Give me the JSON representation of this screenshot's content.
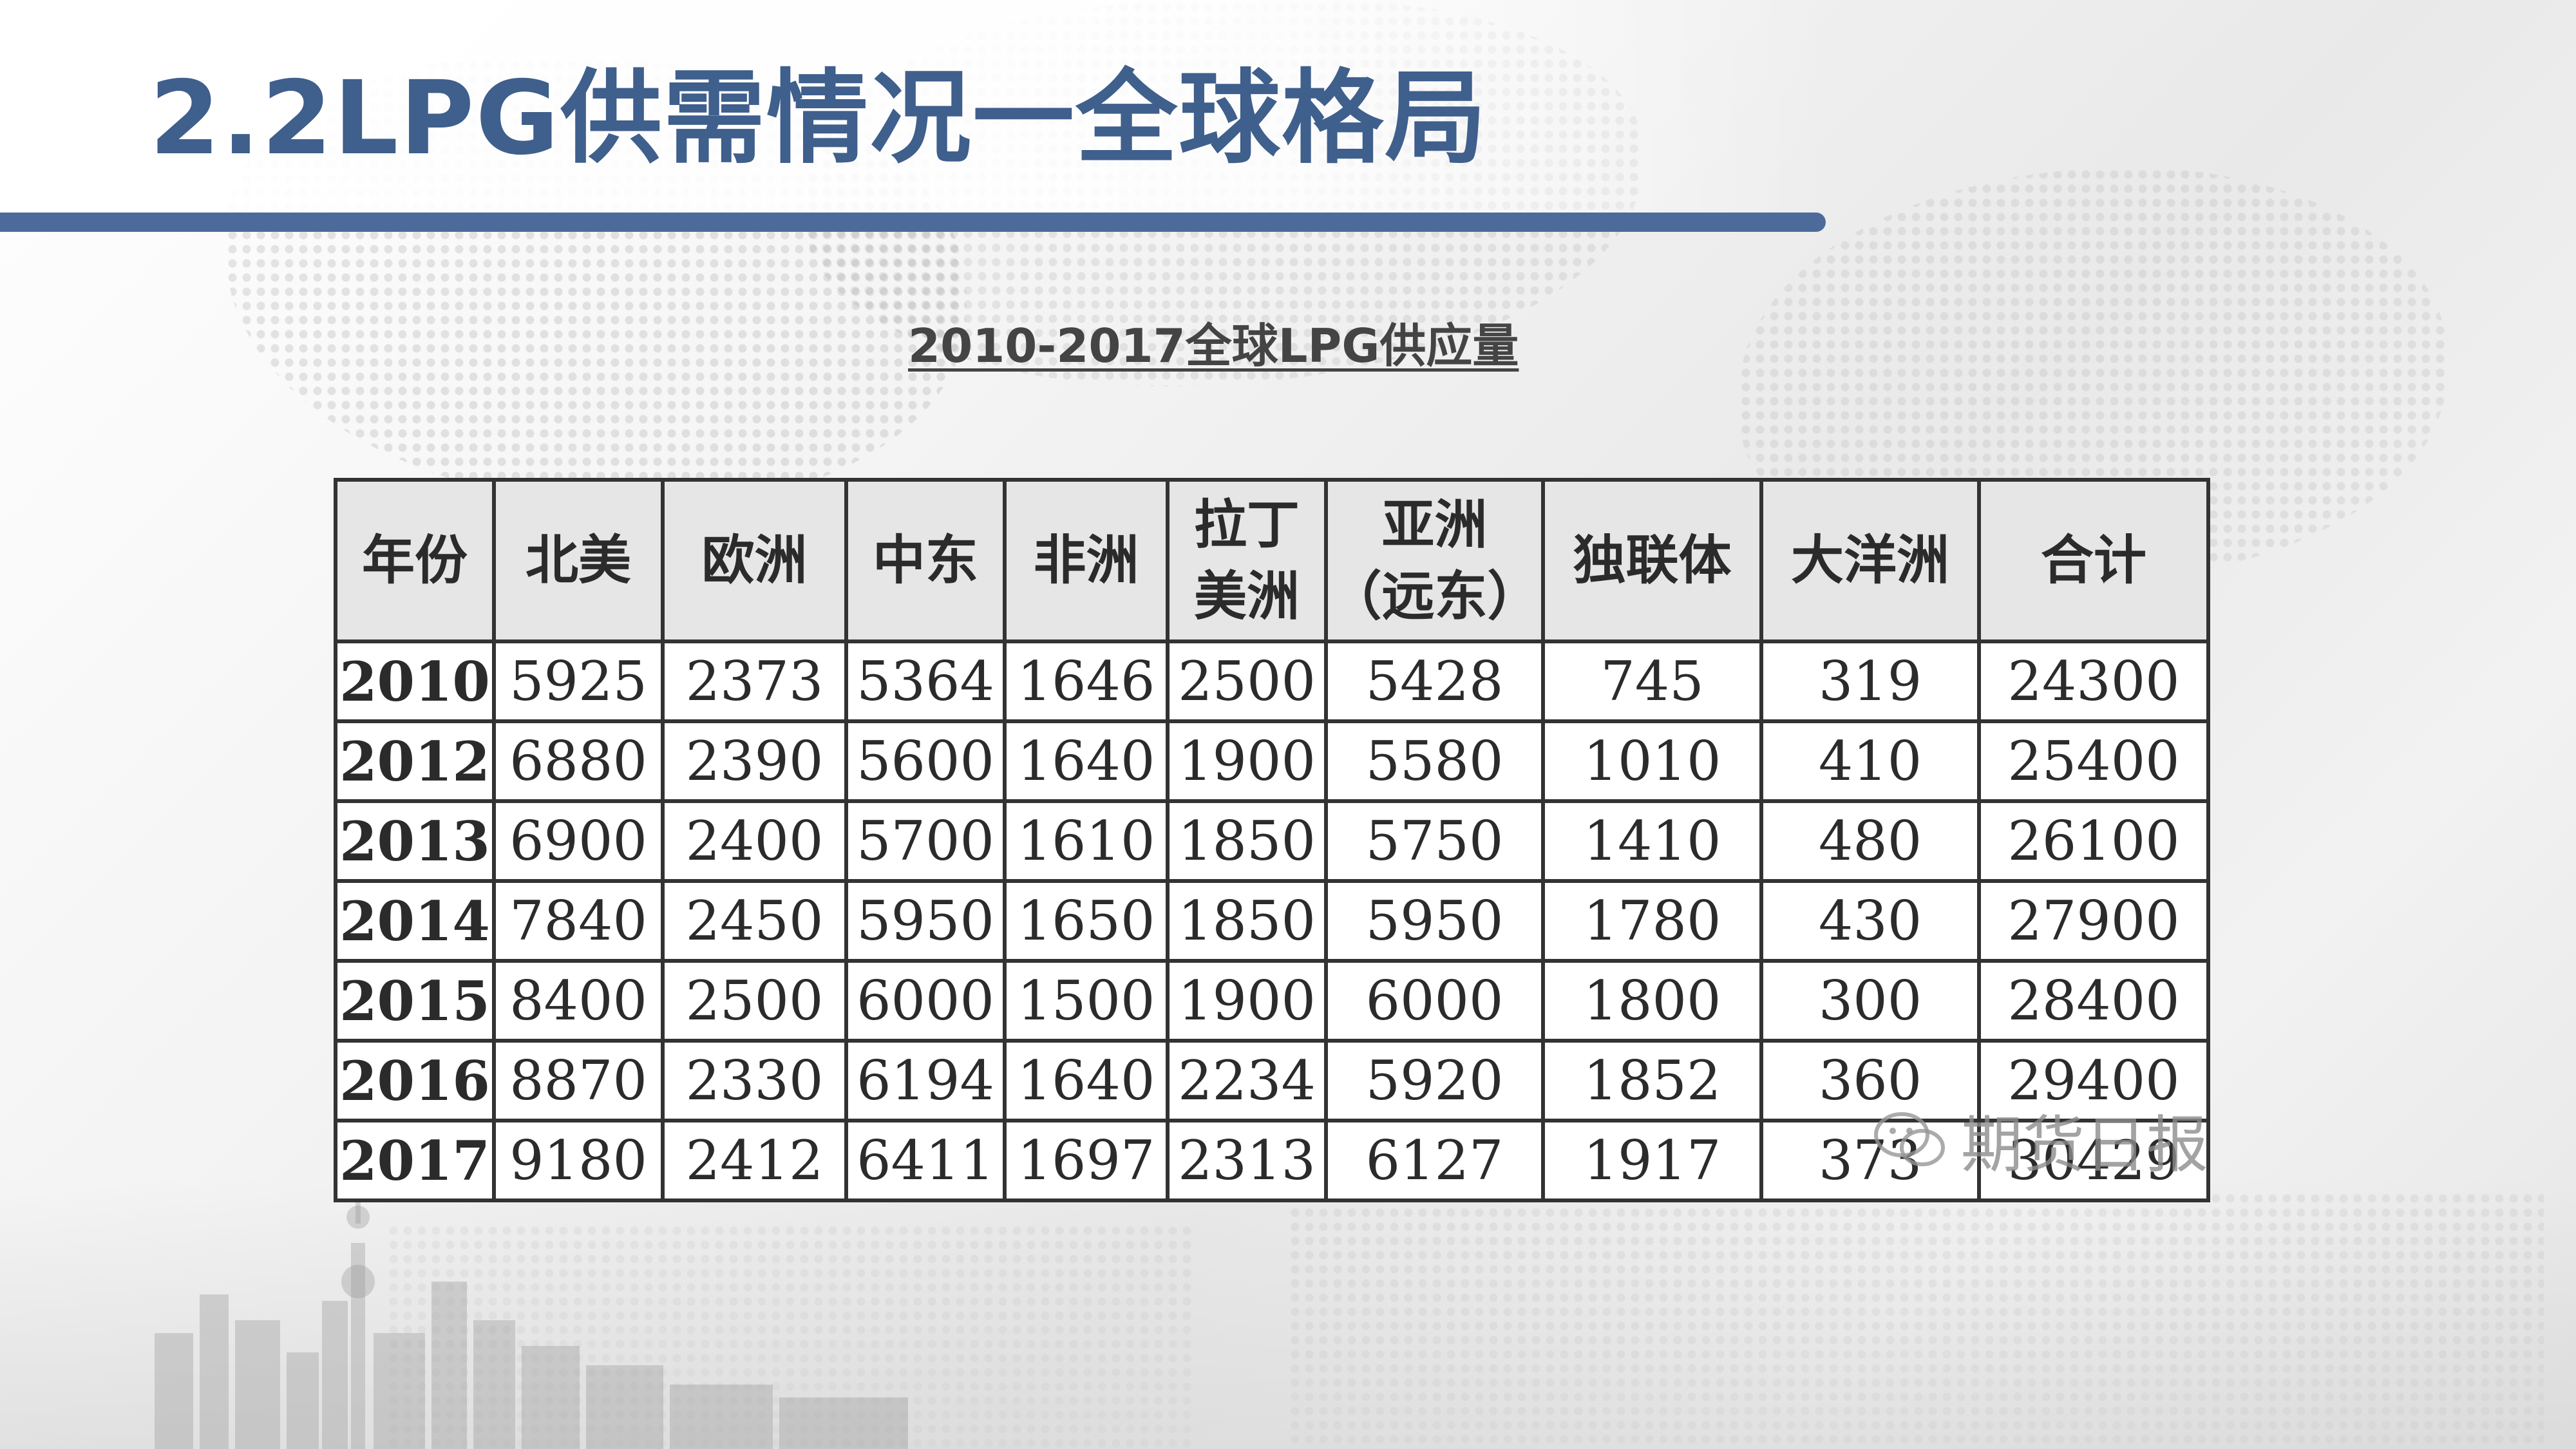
{
  "slide": {
    "title": "2.2LPG供需情况一全球格局",
    "colors": {
      "title": "#3f5f8c",
      "accent_rule": "#4c6b9a",
      "header_fill": "#e6e6e6",
      "table_border": "#333333"
    }
  },
  "table": {
    "caption": "2010-2017全球LPG供应量",
    "headers": [
      "年份",
      "北美",
      "欧洲",
      "中东",
      "非洲",
      "拉丁\n美洲",
      "亚洲\n（远东）",
      "独联体",
      "大洋洲",
      "合计"
    ],
    "rows": [
      [
        "2010",
        "5925",
        "2373",
        "5364",
        "1646",
        "2500",
        "5428",
        "745",
        "319",
        "24300"
      ],
      [
        "2012",
        "6880",
        "2390",
        "5600",
        "1640",
        "1900",
        "5580",
        "1010",
        "410",
        "25400"
      ],
      [
        "2013",
        "6900",
        "2400",
        "5700",
        "1610",
        "1850",
        "5750",
        "1410",
        "480",
        "26100"
      ],
      [
        "2014",
        "7840",
        "2450",
        "5950",
        "1650",
        "1850",
        "5950",
        "1780",
        "430",
        "27900"
      ],
      [
        "2015",
        "8400",
        "2500",
        "6000",
        "1500",
        "1900",
        "6000",
        "1800",
        "300",
        "28400"
      ],
      [
        "2016",
        "8870",
        "2330",
        "6194",
        "1640",
        "2234",
        "5920",
        "1852",
        "360",
        "29400"
      ],
      [
        "2017",
        "9180",
        "2412",
        "6411",
        "1697",
        "2313",
        "6127",
        "1917",
        "373",
        "30429"
      ]
    ]
  },
  "watermark": {
    "text": "期货日报",
    "icon": "wechat-icon"
  }
}
